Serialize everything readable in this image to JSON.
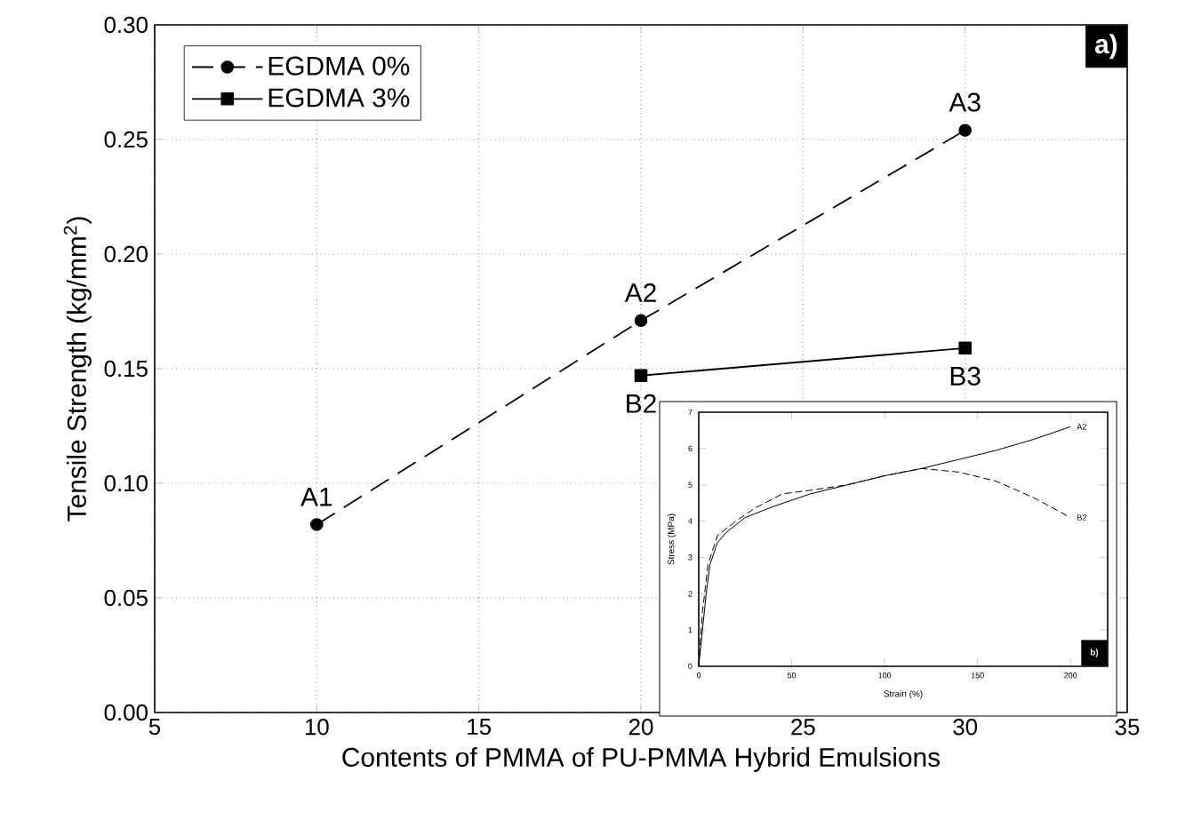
{
  "chart_data": [
    {
      "type": "line",
      "xlabel": "Contents of PMMA of PU-PMMA Hybrid Emulsions",
      "ylabel": "Tensile Strength (kg/mm$^{2}$)",
      "x": [
        10,
        20,
        30
      ],
      "series": [
        {
          "name": "EGDMA 0%",
          "color": "#000000",
          "values": [
            0.082,
            0.171,
            0.254
          ],
          "marker": "circle",
          "line_style": "dashed"
        },
        {
          "name": "EGDMA 3%",
          "color": "#000000",
          "x": [
            20,
            30
          ],
          "values": [
            0.147,
            0.159
          ],
          "marker": "square",
          "line_style": "solid"
        }
      ],
      "xlim": [
        5,
        35
      ],
      "xticks": [
        5,
        10,
        15,
        20,
        25,
        30,
        35
      ],
      "ylim": [
        0,
        0.3
      ],
      "yticks": [
        {
          "value": 0,
          "label": "0.00"
        },
        {
          "value": 0.05,
          "label": "0.05"
        },
        {
          "value": 0.1,
          "label": "0.10"
        },
        {
          "value": 0.15,
          "label": "0.15"
        },
        {
          "value": 0.2,
          "label": "0.20"
        },
        {
          "value": 0.25,
          "label": "0.25"
        },
        {
          "value": 0.3,
          "label": "0.30"
        }
      ],
      "grid": true,
      "legend": "top left",
      "annotations": [
        "a)",
        {
          "text": "A1",
          "x": 10,
          "y": 0.082
        },
        {
          "text": "A2",
          "x": 20,
          "y": 0.171
        },
        {
          "text": "A3",
          "x": 30,
          "y": 0.254
        },
        {
          "text": "B2",
          "x": 20,
          "y": 0.147
        },
        {
          "text": "B3",
          "x": 30,
          "y": 0.159
        }
      ]
    },
    {
      "type": "line",
      "xlabel": "Strain (%)",
      "ylabel": "Stress (MPa)",
      "series": [
        {
          "name": "A2",
          "color": "#000000",
          "line_style": "solid",
          "x": [
            0,
            2,
            4,
            6,
            10,
            15,
            25,
            40,
            60,
            80,
            100,
            120,
            140,
            160,
            180,
            200
          ],
          "values": [
            0,
            1,
            2,
            2.8,
            3.4,
            3.7,
            4.1,
            4.4,
            4.75,
            5.0,
            5.25,
            5.45,
            5.7,
            5.95,
            6.25,
            6.6
          ]
        },
        {
          "name": "B2",
          "color": "#000000",
          "line_style": "dashed",
          "x": [
            0,
            2,
            5,
            10,
            20,
            30,
            45,
            60,
            80,
            100,
            120,
            140,
            160,
            180,
            200
          ],
          "values": [
            0,
            1.5,
            2.8,
            3.6,
            4.0,
            4.35,
            4.75,
            4.85,
            5.0,
            5.25,
            5.45,
            5.35,
            5.1,
            4.65,
            4.1
          ]
        }
      ],
      "xlim": [
        0,
        220
      ],
      "xticks": [
        0,
        50,
        100,
        150,
        200
      ],
      "ylim": [
        0,
        7
      ],
      "yticks": [
        0,
        1,
        2,
        3,
        4,
        5,
        6,
        7
      ],
      "legend": false,
      "marker": "none",
      "annotations": [
        "b)"
      ]
    }
  ]
}
